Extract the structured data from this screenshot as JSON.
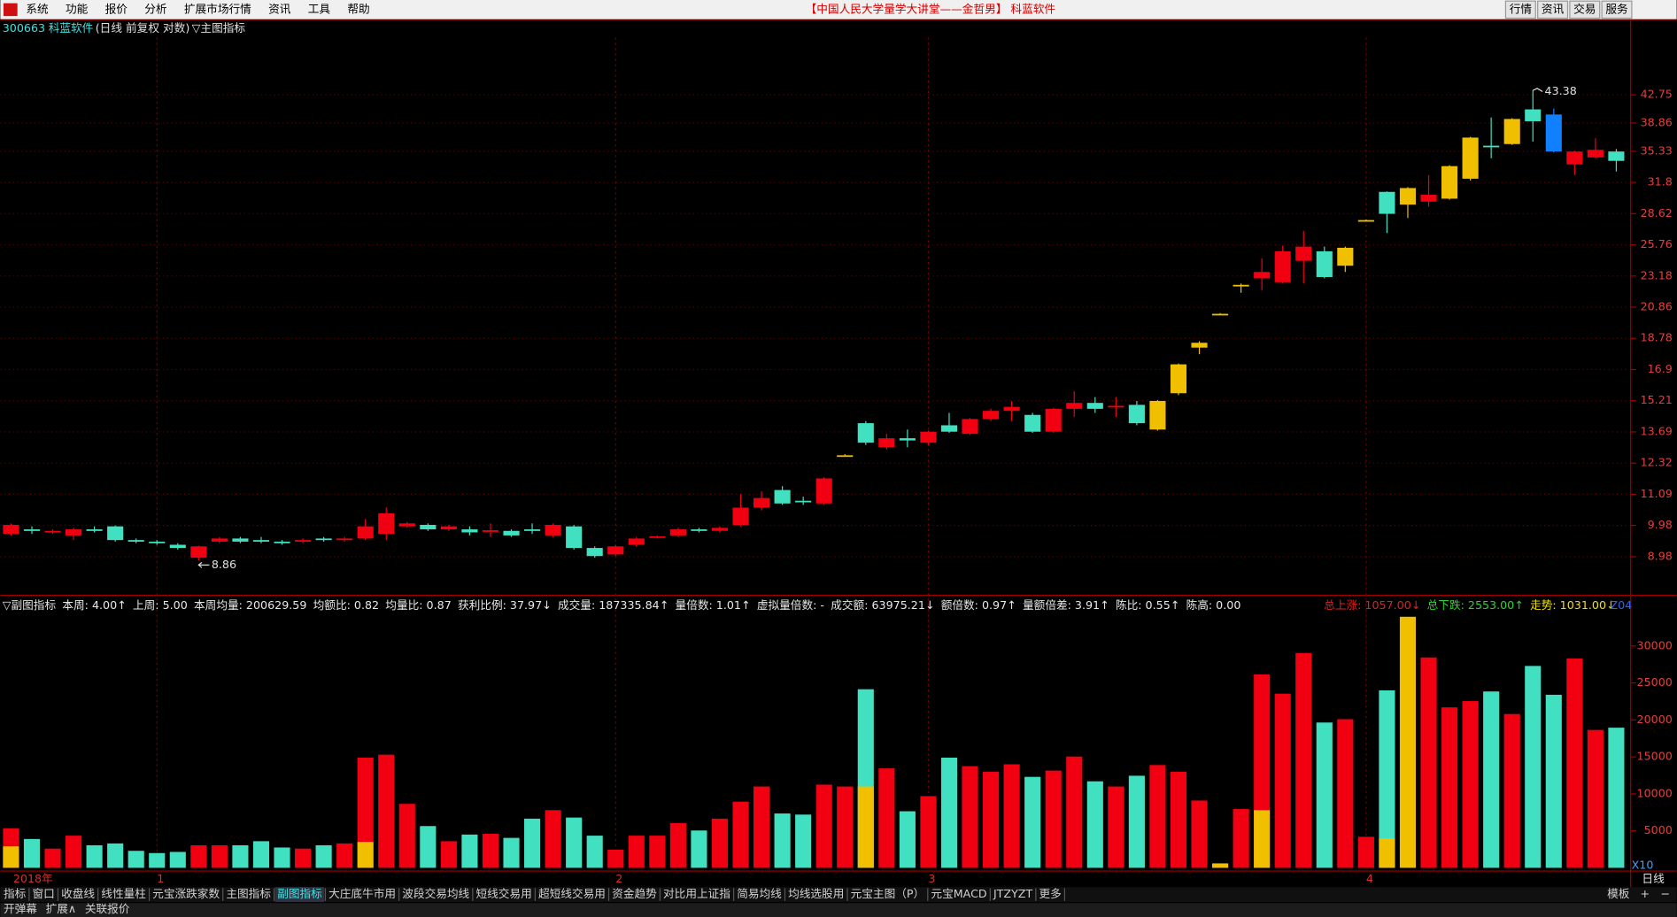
{
  "menu": {
    "items": [
      "系统",
      "功能",
      "报价",
      "分析",
      "扩展市场行情",
      "资讯",
      "工具",
      "帮助"
    ],
    "title": "【中国人民大学量学大讲堂——金哲男】 科蓝软件",
    "buttons": [
      "行情",
      "资讯",
      "交易",
      "服务"
    ]
  },
  "header": {
    "code": "300663",
    "name": "科蓝软件",
    "mode": "(日线 前复权 对数)",
    "indicator": "▽主图指标"
  },
  "indicator_bar": {
    "title": "▽副图指标",
    "items": [
      "本周: 4.00↑",
      "上周: 5.00",
      "本周均量: 200629.59",
      "均额比: 0.82",
      "均量比: 0.87",
      "获利比例: 37.97↓",
      "成交量: 187335.84↑",
      "量倍数: 1.01↑",
      "虚拟量倍数: -",
      "成交额: 63975.21↓",
      "额倍数: 0.97↑",
      "量额倍差: 3.91↑",
      "陈比: 0.55↑",
      "陈高: 0.00"
    ],
    "summary": [
      {
        "text": "总上涨: 1057.00↓",
        "color": "#e02020"
      },
      {
        "text": "总下跌: 2553.00↑",
        "color": "#30d030"
      },
      {
        "text": "走势: 1031.00↓",
        "color": "#f0e000"
      }
    ],
    "tag": "Z04"
  },
  "chart_data": [
    {
      "type": "candlestick",
      "log_scale": true,
      "grid": true,
      "categories": [
        "2018年",
        null,
        null,
        null,
        null,
        null,
        null,
        "1",
        null,
        null,
        null,
        null,
        null,
        null,
        null,
        null,
        null,
        null,
        null,
        null,
        null,
        null,
        null,
        null,
        null,
        null,
        null,
        null,
        null,
        "2",
        null,
        null,
        null,
        null,
        null,
        null,
        null,
        null,
        null,
        null,
        null,
        null,
        null,
        null,
        "3",
        null,
        null,
        null,
        null,
        null,
        null,
        null,
        null,
        null,
        null,
        null,
        null,
        null,
        null,
        null,
        null,
        null,
        null,
        null,
        null,
        "4",
        null,
        null,
        null,
        null,
        null,
        null,
        null,
        null,
        null,
        null,
        null,
        null
      ],
      "open": [
        9.7,
        9.85,
        9.75,
        9.65,
        9.85,
        9.95,
        9.5,
        9.45,
        9.35,
        8.95,
        9.45,
        9.55,
        9.5,
        9.45,
        9.45,
        9.55,
        9.5,
        9.55,
        9.7,
        9.95,
        10.0,
        9.85,
        9.85,
        9.8,
        9.8,
        9.85,
        9.65,
        9.95,
        9.25,
        9.05,
        9.35,
        9.6,
        9.65,
        9.85,
        9.8,
        10.0,
        10.6,
        11.25,
        10.85,
        10.75,
        12.65,
        14.1,
        13.0,
        13.4,
        13.2,
        14.0,
        13.6,
        14.3,
        14.7,
        14.5,
        13.7,
        14.8,
        15.1,
        14.95,
        15.0,
        13.8,
        15.6,
        18.2,
        20.4,
        22.5,
        23.0,
        22.7,
        24.4,
        25.2,
        24.0,
        28.0,
        30.8,
        29.5,
        29.8,
        30.1,
        32.2,
        36.0,
        36.2,
        40.7,
        40.0,
        33.8,
        34.6,
        35.3
      ],
      "high": [
        10.05,
        9.95,
        9.85,
        9.9,
        9.95,
        9.98,
        9.55,
        9.5,
        9.4,
        9.32,
        9.6,
        9.6,
        9.6,
        9.5,
        9.55,
        9.6,
        9.6,
        10.2,
        10.6,
        10.1,
        10.05,
        10.0,
        9.95,
        10.05,
        9.85,
        10.05,
        10.05,
        10.0,
        9.3,
        9.35,
        9.6,
        9.65,
        9.9,
        9.9,
        9.95,
        11.1,
        11.2,
        11.4,
        11.0,
        11.75,
        12.7,
        14.2,
        13.6,
        13.8,
        13.75,
        14.6,
        14.35,
        14.8,
        15.2,
        14.6,
        14.85,
        15.7,
        15.4,
        15.4,
        15.2,
        15.25,
        17.25,
        18.6,
        20.45,
        22.6,
        24.6,
        25.7,
        27.0,
        25.6,
        25.6,
        28.05,
        30.85,
        31.3,
        32.6,
        33.7,
        37.1,
        39.6,
        39.5,
        43.38,
        40.8,
        35.4,
        36.9,
        35.6
      ],
      "low": [
        9.65,
        9.7,
        9.7,
        9.5,
        9.75,
        9.45,
        9.4,
        9.35,
        9.2,
        8.86,
        9.4,
        9.4,
        9.4,
        9.35,
        9.4,
        9.45,
        9.45,
        9.5,
        9.5,
        9.9,
        9.8,
        9.8,
        9.65,
        9.6,
        9.6,
        9.7,
        9.6,
        9.2,
        8.95,
        9.0,
        9.3,
        9.55,
        9.6,
        9.75,
        9.75,
        9.95,
        10.5,
        10.7,
        10.7,
        10.7,
        12.6,
        13.1,
        12.9,
        13.0,
        13.1,
        13.65,
        13.55,
        14.2,
        14.2,
        13.65,
        13.65,
        14.4,
        14.6,
        14.4,
        14.0,
        13.75,
        15.5,
        17.8,
        20.35,
        21.9,
        22.1,
        22.6,
        22.6,
        23.0,
        23.5,
        27.95,
        26.8,
        28.2,
        29.3,
        30.0,
        32.0,
        34.5,
        36.1,
        36.5,
        35.2,
        32.6,
        34.5,
        33.0
      ],
      "close": [
        10.0,
        9.8,
        9.8,
        9.85,
        9.8,
        9.5,
        9.45,
        9.42,
        9.25,
        9.3,
        9.55,
        9.45,
        9.45,
        9.4,
        9.5,
        9.5,
        9.55,
        9.95,
        10.4,
        10.05,
        9.85,
        9.95,
        9.75,
        9.82,
        9.65,
        9.8,
        10.0,
        9.25,
        9.0,
        9.3,
        9.55,
        9.62,
        9.85,
        9.8,
        9.9,
        10.6,
        10.95,
        10.75,
        10.8,
        11.7,
        12.65,
        13.2,
        13.4,
        13.3,
        13.7,
        13.7,
        14.3,
        14.7,
        14.9,
        13.7,
        14.8,
        15.1,
        14.8,
        14.95,
        14.1,
        15.2,
        17.2,
        18.5,
        20.4,
        22.5,
        23.5,
        25.2,
        25.6,
        23.1,
        25.5,
        28.0,
        28.6,
        31.2,
        30.5,
        33.6,
        37.0,
        35.9,
        39.4,
        39.1,
        35.3,
        35.3,
        35.5,
        34.2
      ],
      "colors": [
        "#f00010",
        "#40e0c0",
        "#f00010",
        "#f00010",
        "#40e0c0",
        "#40e0c0",
        "#40e0c0",
        "#40e0c0",
        "#40e0c0",
        "#f00010",
        "#f00010",
        "#40e0c0",
        "#40e0c0",
        "#40e0c0",
        "#f00010",
        "#40e0c0",
        "#f00010",
        "#f00010",
        "#f00010",
        "#f00010",
        "#40e0c0",
        "#f00010",
        "#40e0c0",
        "#f00010",
        "#40e0c0",
        "#40e0c0",
        "#f00010",
        "#40e0c0",
        "#40e0c0",
        "#f00010",
        "#f00010",
        "#f00010",
        "#f00010",
        "#40e0c0",
        "#f00010",
        "#f00010",
        "#f00010",
        "#40e0c0",
        "#40e0c0",
        "#f00010",
        "#f0c000",
        "#40e0c0",
        "#f00010",
        "#40e0c0",
        "#f00010",
        "#40e0c0",
        "#f00010",
        "#f00010",
        "#f00010",
        "#40e0c0",
        "#f00010",
        "#f00010",
        "#40e0c0",
        "#f00010",
        "#40e0c0",
        "#f0c000",
        "#f0c000",
        "#f0c000",
        "#f0c000",
        "#f0c000",
        "#f00010",
        "#f00010",
        "#f00010",
        "#40e0c0",
        "#f0c000",
        "#f0c000",
        "#40e0c0",
        "#f0c000",
        "#f00010",
        "#f0c000",
        "#f0c000",
        "#40e0c0",
        "#f0c000",
        "#40e0c0",
        "#1080ff",
        "#f00010",
        "#f00010",
        "#40e0c0"
      ],
      "ylim": [
        7.94,
        51.9
      ],
      "yticks": [
        8.98,
        9.98,
        11.09,
        12.32,
        13.69,
        15.21,
        16.9,
        18.78,
        20.86,
        23.18,
        25.76,
        28.62,
        31.8,
        35.33,
        38.86,
        42.75
      ]
    },
    {
      "type": "bar",
      "grid": false,
      "values": [
        5350,
        3900,
        2600,
        4350,
        3050,
        3300,
        2300,
        2000,
        2150,
        3050,
        3050,
        3050,
        3600,
        2750,
        2600,
        3050,
        3300,
        14900,
        15300,
        8650,
        5650,
        3600,
        4500,
        4600,
        4050,
        6650,
        7800,
        6800,
        4350,
        2450,
        4350,
        4350,
        6050,
        5050,
        6650,
        8950,
        11000,
        7350,
        7200,
        11250,
        11000,
        24150,
        13450,
        7650,
        9700,
        14900,
        13750,
        13000,
        14000,
        12300,
        13150,
        15050,
        11700,
        11000,
        12450,
        13900,
        13000,
        9100,
        600,
        7950,
        26150,
        23550,
        29050,
        19650,
        20100,
        4200,
        24000,
        33950,
        28450,
        21700,
        22550,
        23850,
        20800,
        27300,
        23400,
        28300,
        18650,
        18950
      ],
      "colors": [
        "#f00010",
        "#40e0c0",
        "#f00010",
        "#f00010",
        "#40e0c0",
        "#40e0c0",
        "#40e0c0",
        "#40e0c0",
        "#40e0c0",
        "#f00010",
        "#f00010",
        "#40e0c0",
        "#40e0c0",
        "#40e0c0",
        "#f00010",
        "#40e0c0",
        "#f00010",
        "#f00010",
        "#f00010",
        "#f00010",
        "#40e0c0",
        "#f00010",
        "#40e0c0",
        "#f00010",
        "#40e0c0",
        "#40e0c0",
        "#f00010",
        "#40e0c0",
        "#40e0c0",
        "#f00010",
        "#f00010",
        "#f00010",
        "#f00010",
        "#40e0c0",
        "#f00010",
        "#f00010",
        "#f00010",
        "#40e0c0",
        "#40e0c0",
        "#f00010",
        "#f00010",
        "#40e0c0",
        "#f00010",
        "#40e0c0",
        "#f00010",
        "#40e0c0",
        "#f00010",
        "#f00010",
        "#f00010",
        "#40e0c0",
        "#f00010",
        "#f00010",
        "#40e0c0",
        "#f00010",
        "#40e0c0",
        "#f00010",
        "#f00010",
        "#f00010",
        "#f00010",
        "#f00010",
        "#f00010",
        "#f00010",
        "#f00010",
        "#40e0c0",
        "#f00010",
        "#f00010",
        "#40e0c0",
        "#f0c000",
        "#f00010",
        "#f00010",
        "#f00010",
        "#40e0c0",
        "#f00010",
        "#40e0c0",
        "#40e0c0",
        "#f00010",
        "#f00010",
        "#40e0c0"
      ],
      "highlight_values": [
        2900,
        null,
        null,
        null,
        null,
        null,
        null,
        null,
        null,
        null,
        null,
        null,
        null,
        null,
        null,
        null,
        null,
        3500,
        null,
        null,
        null,
        null,
        null,
        null,
        null,
        null,
        null,
        null,
        null,
        null,
        null,
        null,
        null,
        null,
        null,
        null,
        null,
        null,
        null,
        null,
        null,
        11000,
        null,
        null,
        null,
        null,
        null,
        null,
        null,
        null,
        null,
        null,
        null,
        null,
        null,
        null,
        null,
        null,
        600,
        null,
        7800,
        null,
        null,
        null,
        null,
        null,
        4000,
        null,
        null,
        null,
        null,
        null,
        null,
        null,
        null,
        null,
        null,
        null
      ],
      "highlight_color": "#f0c000",
      "ylim": [
        0,
        34250
      ],
      "yticks": [
        5000,
        10000,
        15000,
        20000,
        25000,
        30000
      ]
    }
  ],
  "x_axis": {
    "period": "日线",
    "scale": "X10"
  },
  "tabs": [
    "指标",
    "窗口",
    "收盘线",
    "线性量柱",
    "元宝涨跌家数",
    "主图指标",
    "副图指标",
    "大庄底牛市用",
    "波段交易均线",
    "短线交易用",
    "超短线交易用",
    "资金趋势",
    "对比用上证指",
    "简易均线",
    "均线选股用",
    "元宝主图（P）",
    "元宝MACD",
    "JTZYZT",
    "更多"
  ],
  "active_tab": "副图指标",
  "tabs_right": [
    "模板",
    "+",
    "−"
  ],
  "status_bar": [
    "开弹幕",
    "扩展∧",
    "关联报价"
  ]
}
